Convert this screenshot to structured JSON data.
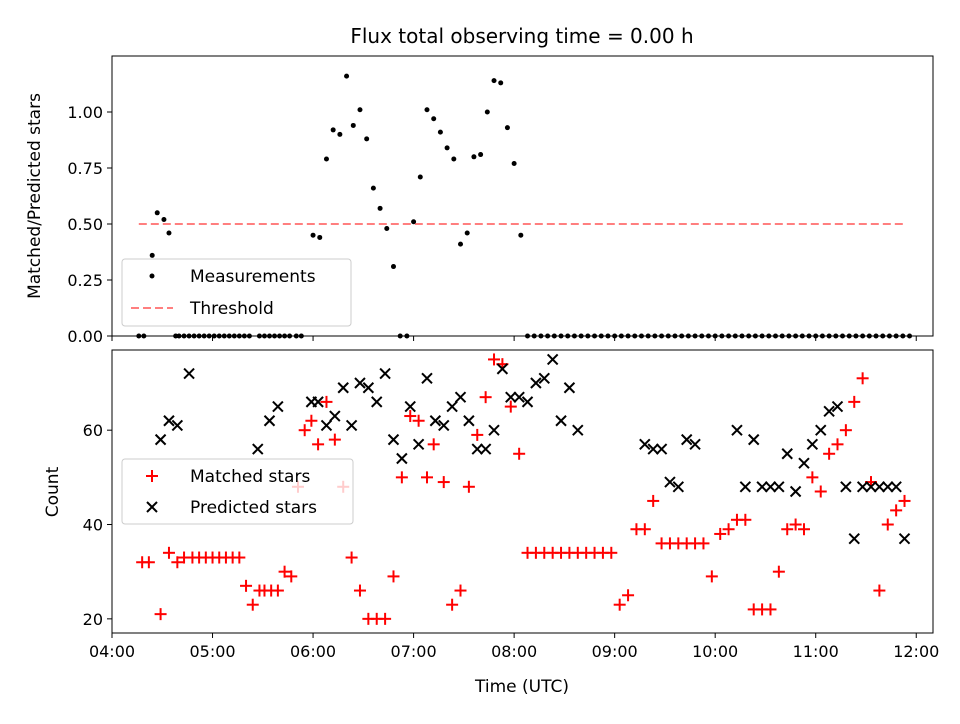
{
  "chart_data": [
    {
      "type": "scatter",
      "title": "Flux total observing time = 0.00 h",
      "xlabel": "",
      "ylabel": "Matched/Predicted stars",
      "xlim": [
        "04:00",
        "12:10"
      ],
      "ylim": [
        0,
        1.25
      ],
      "yticks": [
        "0.00",
        "0.25",
        "0.50",
        "0.75",
        "1.00"
      ],
      "grid": false,
      "legend": {
        "placement": "lower-left",
        "entries": [
          "Measurements",
          "Threshold"
        ]
      },
      "series": [
        {
          "name": "Measurements",
          "marker": "dot",
          "color": "#000000",
          "x": [
            "04:16",
            "04:19",
            "04:24",
            "04:27",
            "04:31",
            "04:34",
            "04:38",
            "04:40",
            "04:43",
            "04:46",
            "04:49",
            "04:52",
            "04:55",
            "04:58",
            "05:01",
            "05:04",
            "05:07",
            "05:10",
            "05:13",
            "05:16",
            "05:19",
            "05:22",
            "05:28",
            "05:31",
            "05:34",
            "05:37",
            "05:40",
            "05:43",
            "05:46",
            "05:50",
            "05:53",
            "06:00",
            "06:04",
            "06:08",
            "06:12",
            "06:16",
            "06:20",
            "06:24",
            "06:28",
            "06:32",
            "06:36",
            "06:40",
            "06:44",
            "06:48",
            "06:52",
            "06:56",
            "07:00",
            "07:04",
            "07:08",
            "07:12",
            "07:16",
            "07:20",
            "07:24",
            "07:28",
            "07:32",
            "07:36",
            "07:40",
            "07:44",
            "07:48",
            "07:52",
            "07:56",
            "08:00",
            "08:04",
            "08:08",
            "08:12",
            "08:16",
            "08:20",
            "08:24",
            "08:28",
            "08:32",
            "08:36",
            "08:40",
            "08:44",
            "08:48",
            "08:52",
            "08:56",
            "09:00",
            "09:04",
            "09:08",
            "09:12",
            "09:16",
            "09:20",
            "09:24",
            "09:28",
            "09:32",
            "09:36",
            "09:40",
            "09:44",
            "09:48",
            "09:52",
            "09:56",
            "10:00",
            "10:04",
            "10:08",
            "10:12",
            "10:16",
            "10:20",
            "10:24",
            "10:28",
            "10:32",
            "10:36",
            "10:40",
            "10:44",
            "10:48",
            "10:52",
            "10:56",
            "11:00",
            "11:04",
            "11:08",
            "11:12",
            "11:16",
            "11:20",
            "11:24",
            "11:28",
            "11:32",
            "11:36",
            "11:40",
            "11:44",
            "11:48",
            "11:52",
            "11:56"
          ],
          "y": [
            0.0,
            0.0,
            0.36,
            0.55,
            0.52,
            0.46,
            0.0,
            0.0,
            0.0,
            0.0,
            0.0,
            0.0,
            0.0,
            0.0,
            0.0,
            0.0,
            0.0,
            0.0,
            0.0,
            0.0,
            0.0,
            0.0,
            0.0,
            0.0,
            0.0,
            0.0,
            0.0,
            0.0,
            0.0,
            0.0,
            0.0,
            0.45,
            0.44,
            0.79,
            0.92,
            0.9,
            1.16,
            0.94,
            1.01,
            0.88,
            0.66,
            0.57,
            0.48,
            0.31,
            0.0,
            0.0,
            0.51,
            0.71,
            1.01,
            0.97,
            0.91,
            0.84,
            0.79,
            0.41,
            0.46,
            0.8,
            0.81,
            1.0,
            1.14,
            1.13,
            0.93,
            0.77,
            0.45,
            0.0,
            0.0,
            0.0,
            0.0,
            0.0,
            0.0,
            0.0,
            0.0,
            0.0,
            0.0,
            0.0,
            0.0,
            0.0,
            0.0,
            0.0,
            0.0,
            0.0,
            0.0,
            0.0,
            0.0,
            0.0,
            0.0,
            0.0,
            0.0,
            0.0,
            0.0,
            0.0,
            0.0,
            0.0,
            0.0,
            0.0,
            0.0,
            0.0,
            0.0,
            0.0,
            0.0,
            0.0,
            0.0,
            0.0,
            0.0,
            0.0,
            0.0,
            0.0,
            0.0,
            0.0,
            0.0,
            0.0,
            0.0,
            0.0,
            0.0,
            0.0,
            0.0,
            0.0,
            0.0,
            0.0,
            0.0,
            0.0,
            0.0
          ]
        },
        {
          "name": "Threshold",
          "marker": "dashed-line",
          "color": "#ff7f7f",
          "x": [
            "04:16",
            "11:52"
          ],
          "y": [
            0.5,
            0.5
          ]
        }
      ]
    },
    {
      "type": "scatter",
      "title": "",
      "xlabel": "Time (UTC)",
      "ylabel": "Count",
      "xlim": [
        "04:00",
        "12:10"
      ],
      "ylim": [
        17,
        77
      ],
      "xticks": [
        "04:00",
        "05:00",
        "06:00",
        "07:00",
        "08:00",
        "09:00",
        "10:00",
        "11:00",
        "12:00"
      ],
      "yticks": [
        "20",
        "40",
        "60"
      ],
      "grid": false,
      "legend": {
        "placement": "center-left",
        "entries": [
          "Matched stars",
          "Predicted stars"
        ]
      },
      "series": [
        {
          "name": "Matched stars",
          "marker": "plus",
          "color": "#ff0000",
          "x": [
            "04:18",
            "04:22",
            "04:29",
            "04:34",
            "04:39",
            "04:43",
            "04:48",
            "04:52",
            "04:56",
            "05:00",
            "05:04",
            "05:08",
            "05:12",
            "05:16",
            "05:20",
            "05:24",
            "05:28",
            "05:31",
            "05:35",
            "05:39",
            "05:43",
            "05:47",
            "05:51",
            "05:55",
            "05:59",
            "06:03",
            "06:08",
            "06:13",
            "06:18",
            "06:23",
            "06:28",
            "06:33",
            "06:38",
            "06:43",
            "06:48",
            "06:53",
            "06:58",
            "07:03",
            "07:08",
            "07:12",
            "07:18",
            "07:23",
            "07:28",
            "07:33",
            "07:38",
            "07:43",
            "07:48",
            "07:53",
            "07:58",
            "08:03",
            "08:08",
            "08:13",
            "08:18",
            "08:23",
            "08:28",
            "08:33",
            "08:38",
            "08:43",
            "08:48",
            "08:53",
            "08:58",
            "09:03",
            "09:08",
            "09:13",
            "09:18",
            "09:23",
            "09:28",
            "09:33",
            "09:38",
            "09:43",
            "09:48",
            "09:53",
            "09:58",
            "10:03",
            "10:08",
            "10:13",
            "10:18",
            "10:23",
            "10:28",
            "10:33",
            "10:38",
            "10:43",
            "10:48",
            "10:53",
            "10:58",
            "11:03",
            "11:08",
            "11:13",
            "11:18",
            "11:23",
            "11:28",
            "11:33",
            "11:38",
            "11:43",
            "11:48",
            "11:53"
          ],
          "y": [
            32,
            32,
            21,
            34,
            32,
            33,
            33,
            33,
            33,
            33,
            33,
            33,
            33,
            33,
            27,
            23,
            26,
            26,
            26,
            26,
            30,
            29,
            48,
            60,
            62,
            57,
            66,
            58,
            48,
            33,
            26,
            20,
            20,
            20,
            29,
            50,
            63,
            62,
            50,
            57,
            49,
            23,
            26,
            48,
            59,
            67,
            75,
            74,
            65,
            55,
            34,
            34,
            34,
            34,
            34,
            34,
            34,
            34,
            34,
            34,
            34,
            23,
            25,
            39,
            39,
            45,
            36,
            36,
            36,
            36,
            36,
            36,
            29,
            38,
            39,
            41,
            41,
            22,
            22,
            22,
            30,
            39,
            40,
            39,
            50,
            47,
            55,
            57,
            60,
            66,
            71,
            49,
            26,
            40,
            43,
            45
          ]
        },
        {
          "name": "Predicted stars",
          "marker": "x",
          "color": "#000000",
          "x": [
            "04:29",
            "04:34",
            "04:39",
            "04:46",
            "05:27",
            "05:34",
            "05:39",
            "05:59",
            "06:03",
            "06:08",
            "06:13",
            "06:18",
            "06:23",
            "06:28",
            "06:33",
            "06:38",
            "06:43",
            "06:48",
            "06:53",
            "06:58",
            "07:03",
            "07:08",
            "07:13",
            "07:18",
            "07:23",
            "07:28",
            "07:33",
            "07:38",
            "07:43",
            "07:48",
            "07:53",
            "07:58",
            "08:03",
            "08:08",
            "08:13",
            "08:18",
            "08:23",
            "08:28",
            "08:33",
            "08:38",
            "09:18",
            "09:23",
            "09:28",
            "09:33",
            "09:38",
            "09:43",
            "09:48",
            "10:13",
            "10:18",
            "10:23",
            "10:28",
            "10:33",
            "10:38",
            "10:43",
            "10:48",
            "10:53",
            "10:58",
            "11:03",
            "11:08",
            "11:13",
            "11:18",
            "11:23",
            "11:28",
            "11:33",
            "11:38",
            "11:43",
            "11:48",
            "11:53"
          ],
          "y": [
            58,
            62,
            61,
            72,
            56,
            62,
            65,
            66,
            66,
            61,
            63,
            69,
            61,
            70,
            69,
            66,
            72,
            58,
            54,
            65,
            57,
            71,
            62,
            61,
            65,
            67,
            62,
            56,
            56,
            60,
            73,
            67,
            67,
            66,
            70,
            71,
            75,
            62,
            69,
            60,
            57,
            56,
            56,
            49,
            48,
            58,
            57,
            60,
            48,
            58,
            48,
            48,
            48,
            55,
            47,
            53,
            57,
            60,
            64,
            65,
            48,
            37,
            48,
            48,
            48,
            48,
            48,
            37
          ]
        }
      ]
    }
  ]
}
